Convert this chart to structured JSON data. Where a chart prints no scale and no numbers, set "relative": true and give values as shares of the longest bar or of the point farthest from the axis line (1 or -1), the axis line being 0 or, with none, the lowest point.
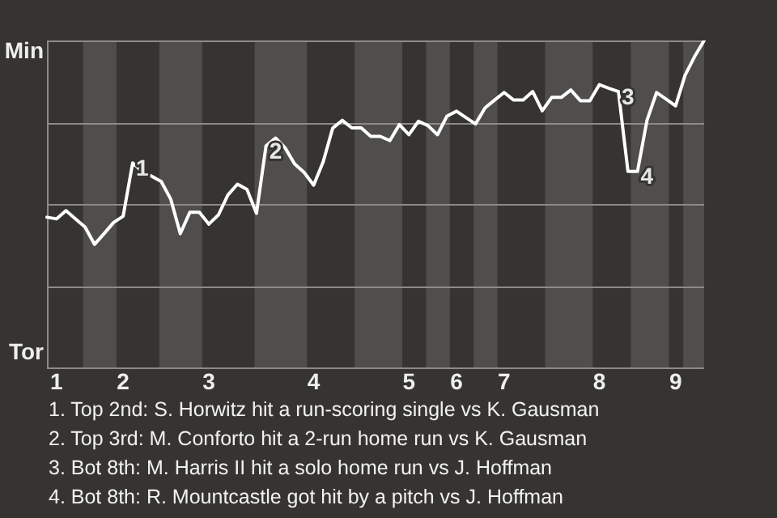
{
  "chart_data": {
    "type": "line",
    "relative": true,
    "categories": [
      null,
      "1",
      null,
      null,
      null,
      null,
      null,
      null,
      "2",
      null,
      null,
      null,
      null,
      null,
      null,
      null,
      null,
      "3",
      null,
      null,
      null,
      null,
      null,
      null,
      null,
      null,
      null,
      null,
      "4",
      null,
      null,
      null,
      null,
      null,
      null,
      null,
      null,
      null,
      "5",
      null,
      null,
      null,
      null,
      "6",
      null,
      null,
      null,
      null,
      "7",
      null,
      null,
      null,
      null,
      null,
      null,
      null,
      null,
      null,
      "8",
      null,
      null,
      null,
      null,
      null,
      null,
      null,
      "9",
      null,
      null,
      null
    ],
    "grid": "y",
    "marker": "none",
    "line_style": "solid",
    "series": [
      {
        "color": "#ffffff",
        "values": [
          0.46,
          0.455,
          0.48,
          0.455,
          0.43,
          0.377,
          0.41,
          0.444,
          0.463,
          0.626,
          0.6,
          0.585,
          0.569,
          0.515,
          0.41,
          0.475,
          0.475,
          0.439,
          0.467,
          0.528,
          0.561,
          0.545,
          0.472,
          0.678,
          0.702,
          0.672,
          0.623,
          0.597,
          0.558,
          0.629,
          0.732,
          0.756,
          0.733,
          0.733,
          0.707,
          0.707,
          0.694,
          0.743,
          0.712,
          0.753,
          0.74,
          0.712,
          0.769,
          0.784,
          0.764,
          0.745,
          0.794,
          0.818,
          0.841,
          0.818,
          0.818,
          0.844,
          0.785,
          0.826,
          0.826,
          0.849,
          0.816,
          0.816,
          0.865,
          0.854,
          0.844,
          0.6,
          0.6,
          0.756,
          0.841,
          0.821,
          0.8,
          0.894,
          0.951,
          1
        ]
      }
    ],
    "annotations": [
      {
        "text": "1",
        "y": 0.626
      },
      {
        "text": "2",
        "y": 0.678
      },
      {
        "text": "3",
        "y": 0.844
      },
      {
        "text": "4",
        "y": 0.6
      },
      "Min",
      "Tor",
      "1. Top 2nd: S. Horwitz hit a run-scoring single vs K. Gausman",
      "2. Top 3rd: M. Conforto hit a 2-run home run vs K. Gausman",
      "3. Bot 8th: M. Harris II hit a solo home run vs J. Hoffman",
      "4. Bot 8th: R. Mountcastle got hit by a pitch vs J. Hoffman"
    ]
  }
}
